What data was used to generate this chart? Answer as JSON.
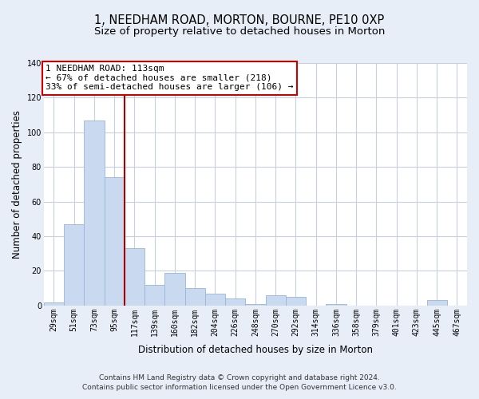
{
  "title": "1, NEEDHAM ROAD, MORTON, BOURNE, PE10 0XP",
  "subtitle": "Size of property relative to detached houses in Morton",
  "xlabel": "Distribution of detached houses by size in Morton",
  "ylabel": "Number of detached properties",
  "categories": [
    "29sqm",
    "51sqm",
    "73sqm",
    "95sqm",
    "117sqm",
    "139sqm",
    "160sqm",
    "182sqm",
    "204sqm",
    "226sqm",
    "248sqm",
    "270sqm",
    "292sqm",
    "314sqm",
    "336sqm",
    "358sqm",
    "379sqm",
    "401sqm",
    "423sqm",
    "445sqm",
    "467sqm"
  ],
  "values": [
    2,
    47,
    107,
    74,
    33,
    12,
    19,
    10,
    7,
    4,
    1,
    6,
    5,
    0,
    1,
    0,
    0,
    0,
    0,
    3,
    0
  ],
  "bar_color": "#c9d9ef",
  "bar_edge_color": "#9ab5d9",
  "vline_x_index": 3,
  "vline_color": "#aa0000",
  "ylim": [
    0,
    140
  ],
  "yticks": [
    0,
    20,
    40,
    60,
    80,
    100,
    120,
    140
  ],
  "annotation_text": "1 NEEDHAM ROAD: 113sqm\n← 67% of detached houses are smaller (218)\n33% of semi-detached houses are larger (106) →",
  "annotation_box_facecolor": "#ffffff",
  "annotation_box_edgecolor": "#cc0000",
  "footer_line1": "Contains HM Land Registry data © Crown copyright and database right 2024.",
  "footer_line2": "Contains public sector information licensed under the Open Government Licence v3.0.",
  "fig_facecolor": "#e8eef8",
  "plot_facecolor": "#ffffff",
  "grid_color": "#c8d0e0",
  "title_fontsize": 10.5,
  "subtitle_fontsize": 9.5,
  "axis_label_fontsize": 8.5,
  "tick_fontsize": 7,
  "annotation_fontsize": 8,
  "footer_fontsize": 6.5
}
